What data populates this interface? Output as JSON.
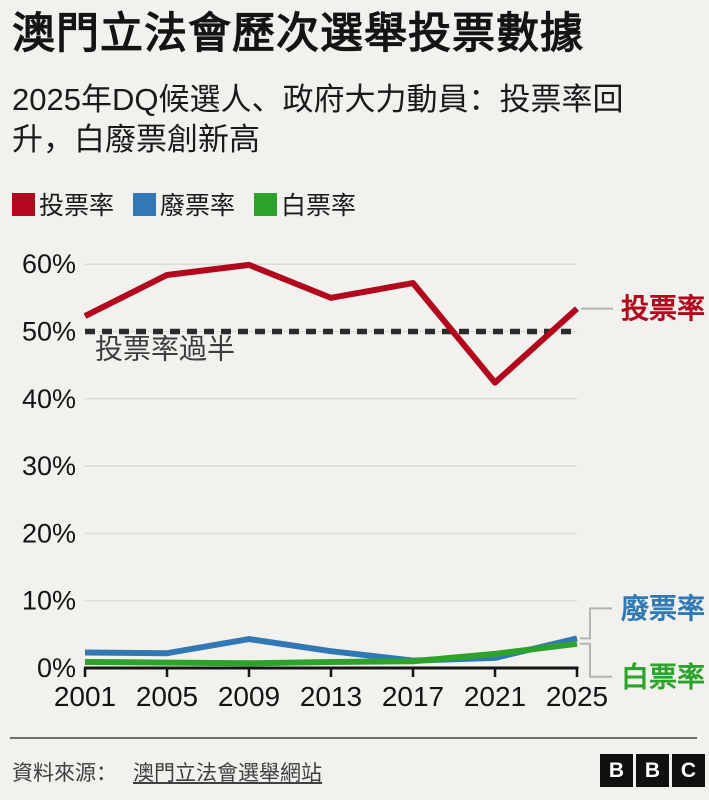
{
  "page": {
    "background": "#f2f1ee"
  },
  "header": {
    "title": "澳門立法會歷次選舉投票數據",
    "subtitle_lines": [
      "2025年DQ候選人、政府大力動員：投票率回",
      "升，白廢票創新高"
    ]
  },
  "chart_data": {
    "type": "line",
    "categories": [
      "2001",
      "2005",
      "2009",
      "2013",
      "2017",
      "2021",
      "2025"
    ],
    "series": [
      {
        "name": "投票率",
        "color": "#b2071c",
        "values": [
          52.3,
          58.4,
          59.9,
          55.0,
          57.2,
          42.4,
          53.4
        ]
      },
      {
        "name": "廢票率",
        "color": "#3179b5",
        "values": [
          2.3,
          2.2,
          4.3,
          2.5,
          1.1,
          1.5,
          4.4
        ]
      },
      {
        "name": "白票率",
        "color": "#2da32c",
        "values": [
          0.9,
          0.8,
          0.7,
          0.9,
          1.0,
          2.1,
          3.6
        ]
      }
    ],
    "ylim": [
      0,
      60
    ],
    "ytick_step": 10,
    "ytick_suffix": "%",
    "grid": true,
    "legend_position": "top",
    "end_labels": true,
    "threshold": {
      "value": 50,
      "label": "投票率過半",
      "style": "dashed"
    },
    "colors": {
      "axis": "#141414",
      "grid": "#dcdbd8",
      "threshold": "#2b2b2b",
      "threshold_label": "#3d3d3d",
      "connector": "#b3b3b3"
    }
  },
  "footer": {
    "source_prefix": "資料來源：",
    "source_link": "澳門立法會選舉網站",
    "logo_letters": [
      "B",
      "B",
      "C"
    ]
  }
}
